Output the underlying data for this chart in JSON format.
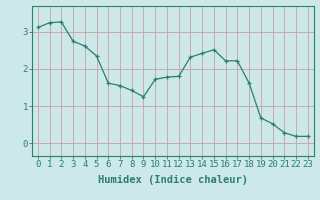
{
  "x": [
    0,
    1,
    2,
    3,
    4,
    5,
    6,
    7,
    8,
    9,
    10,
    11,
    12,
    13,
    14,
    15,
    16,
    17,
    18,
    19,
    20,
    21,
    22,
    23
  ],
  "y": [
    3.12,
    3.25,
    3.27,
    2.75,
    2.62,
    2.35,
    1.62,
    1.55,
    1.42,
    1.25,
    1.72,
    1.78,
    1.8,
    2.32,
    2.42,
    2.52,
    2.22,
    2.22,
    1.62,
    0.68,
    0.52,
    0.28,
    0.18,
    0.18
  ],
  "line_color": "#2a7f6f",
  "marker": "+",
  "marker_size": 3,
  "bg_color": "#cce8e8",
  "grid_color": "#c8a0a0",
  "xlabel": "Humidex (Indice chaleur)",
  "xlim": [
    -0.5,
    23.5
  ],
  "ylim": [
    -0.35,
    3.7
  ],
  "yticks": [
    0,
    1,
    2,
    3
  ],
  "xticks": [
    0,
    1,
    2,
    3,
    4,
    5,
    6,
    7,
    8,
    9,
    10,
    11,
    12,
    13,
    14,
    15,
    16,
    17,
    18,
    19,
    20,
    21,
    22,
    23
  ],
  "tick_fontsize": 6.5,
  "xlabel_fontsize": 7.5,
  "tick_color": "#2a7f6f",
  "spine_color": "#2a7f6f"
}
